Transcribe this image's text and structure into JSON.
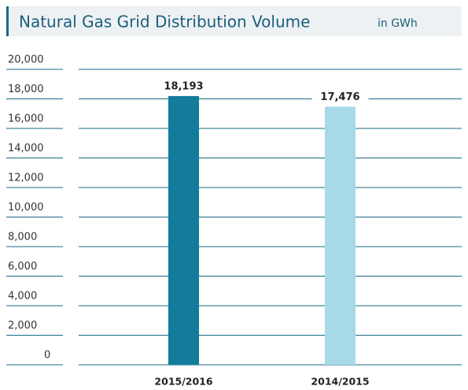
{
  "chart_data": {
    "type": "bar",
    "title": "Natural Gas Grid Distribution Volume",
    "subtitle": "in GWh",
    "categories": [
      "2015/2016",
      "2014/2015"
    ],
    "values": [
      18193,
      17476
    ],
    "value_labels": [
      "18,193",
      "17,476"
    ],
    "colors": [
      "#127c9a",
      "#a8d9e7"
    ],
    "ylim": [
      0,
      20000
    ],
    "yticks": [
      0,
      {
        "value": 2000,
        "label": "2,000"
      },
      {
        "value": 4000,
        "label": "4,000"
      },
      {
        "value": 6000,
        "label": "6,000"
      },
      {
        "value": 8000,
        "label": "8,000"
      },
      {
        "value": 10000,
        "label": "10,000"
      },
      {
        "value": 12000,
        "label": "12,000"
      },
      {
        "value": 14000,
        "label": "14,000"
      },
      {
        "value": 16000,
        "label": "16,000"
      },
      {
        "value": 18000,
        "label": "18,000"
      },
      {
        "value": 20000,
        "label": "20,000"
      }
    ],
    "grid": true
  }
}
